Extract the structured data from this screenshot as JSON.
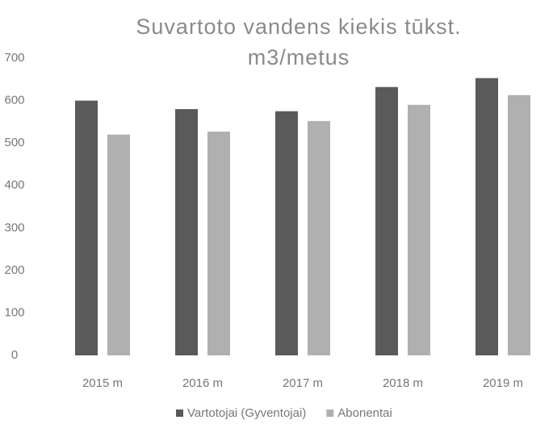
{
  "chart_data": {
    "type": "bar",
    "title": "Suvartoto vandens kiekis tūkst. m3/metus",
    "categories": [
      "2015 m",
      "2016 m",
      "2017 m",
      "2018 m",
      "2019 m"
    ],
    "series": [
      {
        "name": "Vartotojai (Gyventojai)",
        "color": "#5a5a5a",
        "values": [
          600,
          580,
          575,
          632,
          653
        ]
      },
      {
        "name": "Abonentai",
        "color": "#b0b0b0",
        "values": [
          520,
          527,
          552,
          590,
          613
        ]
      }
    ],
    "ylim": [
      0,
      700
    ],
    "yticks": [
      0,
      100,
      200,
      300,
      400,
      500,
      600,
      700
    ],
    "legend": "bottom"
  }
}
